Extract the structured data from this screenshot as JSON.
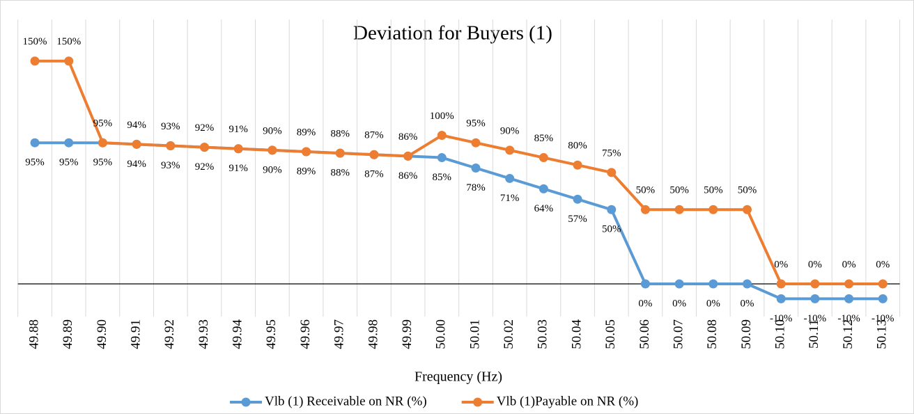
{
  "chart_data": {
    "type": "line",
    "title": "Deviation for Buyers (1)",
    "x_label": "Frequency (Hz)",
    "categories": [
      "49.88",
      "49.89",
      "49.90",
      "49.91",
      "49.92",
      "49.93",
      "49.94",
      "49.95",
      "49.96",
      "49.97",
      "49.98",
      "49.99",
      "50.00",
      "50.01",
      "50.02",
      "50.03",
      "50.04",
      "50.05",
      "50.06",
      "50.07",
      "50.08",
      "50.09",
      "50.10",
      "50.11",
      "50.12",
      "50.13"
    ],
    "series": [
      {
        "name": "Vlb (1) Receivable on NR (%)",
        "color": "#5b9bd5",
        "label_position": "below",
        "values": [
          95,
          95,
          95,
          94,
          93,
          92,
          91,
          90,
          89,
          88,
          87,
          86,
          85,
          78,
          71,
          64,
          57,
          50,
          0,
          0,
          0,
          0,
          -10,
          -10,
          -10,
          -10
        ],
        "value_labels": [
          "95%",
          "95%",
          "95%",
          "94%",
          "93%",
          "92%",
          "91%",
          "90%",
          "89%",
          "88%",
          "87%",
          "86%",
          "85%",
          "78%",
          "71%",
          "64%",
          "57%",
          "50%",
          "0%",
          "0%",
          "0%",
          "0%",
          "-10%",
          "-10%",
          "-10%",
          "-10%"
        ]
      },
      {
        "name": "Vlb (1)Payable on NR (%)",
        "color": "#ed7d31",
        "label_position": "above",
        "values": [
          150,
          150,
          95,
          94,
          93,
          92,
          91,
          90,
          89,
          88,
          87,
          86,
          100,
          95,
          90,
          85,
          80,
          75,
          50,
          50,
          50,
          50,
          0,
          0,
          0,
          0
        ],
        "value_labels": [
          "150%",
          "150%",
          "95%",
          "94%",
          "93%",
          "92%",
          "91%",
          "90%",
          "89%",
          "88%",
          "87%",
          "86%",
          "100%",
          "95%",
          "90%",
          "85%",
          "80%",
          "75%",
          "50%",
          "50%",
          "50%",
          "50%",
          "0%",
          "0%",
          "0%",
          "0%"
        ]
      }
    ],
    "ylim": [
      -22,
      178
    ],
    "grid": true,
    "legend": "bottom"
  }
}
